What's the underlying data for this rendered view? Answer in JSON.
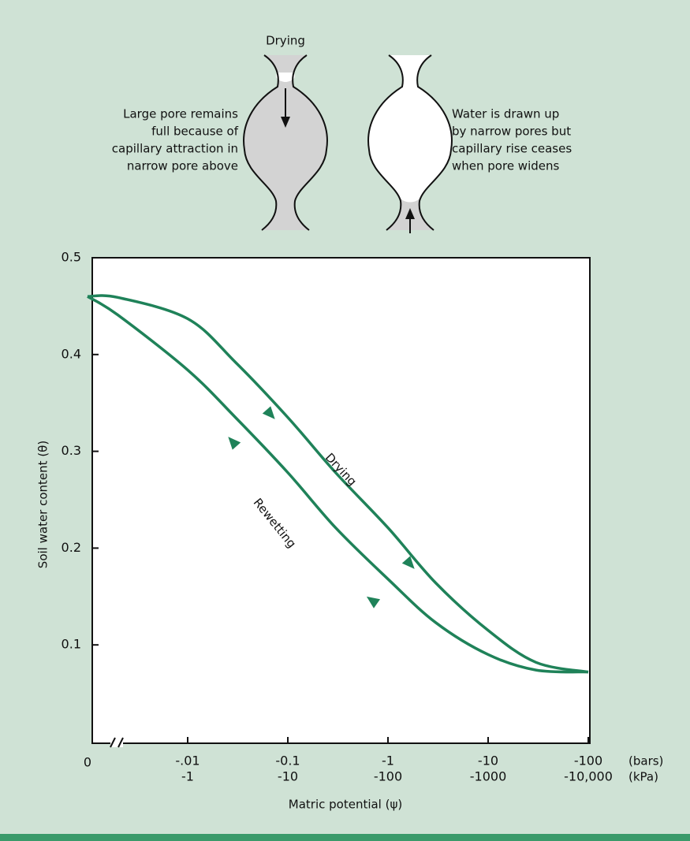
{
  "diagram": {
    "title": "Drying",
    "left_caption": [
      "Large pore remains",
      "full because of",
      "capillary attraction in",
      "narrow pore above"
    ],
    "right_caption": [
      "Water is drawn up",
      "by narrow pores but",
      "capillary rise ceases",
      "when pore widens"
    ]
  },
  "chart_data": {
    "type": "line",
    "y_label": "Soil water content (θ)",
    "x_label": "Matric potential (ψ)",
    "x_unit": "(bars)",
    "x2_unit": "(kPa)",
    "xscale": "log",
    "xlim": [
      -0.001,
      -100
    ],
    "xticks": [
      0,
      {
        "value": -0.01,
        "label": "-.01"
      },
      -0.1,
      -1,
      -10,
      -100
    ],
    "x2lim": [
      -0.1,
      -10000
    ],
    "x2ticks": [
      -1,
      -10,
      -100,
      -1000,
      {
        "value": -10000,
        "label": "-10,000"
      }
    ],
    "ylim": [
      0,
      0.5
    ],
    "yticks": [
      0.1,
      0.2,
      0.3,
      0.4,
      0.5
    ],
    "x": [
      -0.001,
      -0.002,
      -0.01,
      -0.03,
      -0.1,
      -0.3,
      -1,
      -3,
      -10,
      -30,
      -100
    ],
    "series": [
      {
        "name": "Drying",
        "color": "#1f8259",
        "values": [
          0.46,
          0.459,
          0.437,
          0.392,
          0.335,
          0.278,
          0.221,
          0.164,
          0.115,
          0.082,
          0.072
        ]
      },
      {
        "name": "Rewetting",
        "color": "#1f8259",
        "values": [
          0.46,
          0.441,
          0.384,
          0.335,
          0.278,
          0.221,
          0.168,
          0.123,
          0.09,
          0.074,
          0.072
        ]
      }
    ]
  }
}
